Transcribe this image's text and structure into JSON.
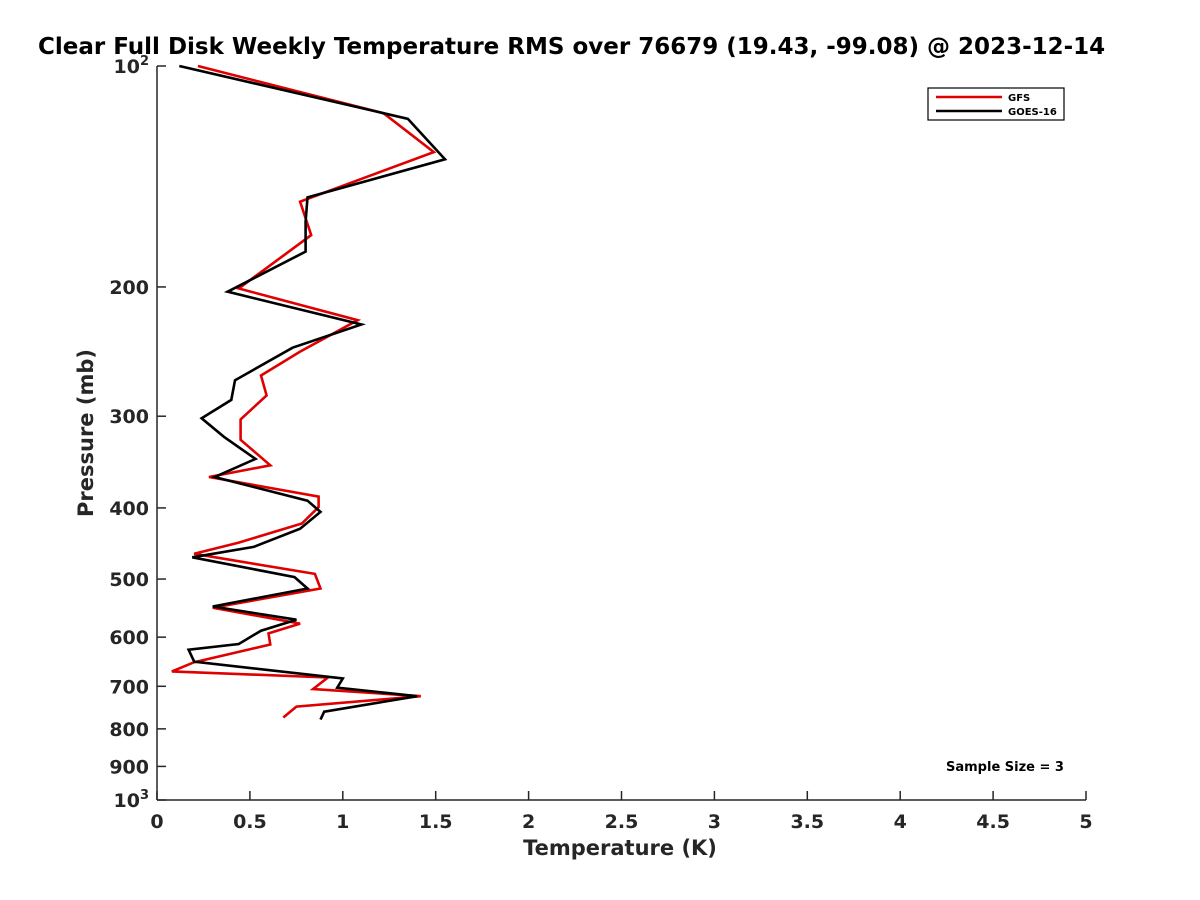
{
  "chart_data": {
    "type": "line",
    "title": "Clear Full Disk Weekly Temperature RMS over 76679 (19.43, -99.08) @ 2023-12-14",
    "xlabel": "Temperature (K)",
    "ylabel": "Pressure (mb)",
    "xlim": [
      0,
      5
    ],
    "ylim": [
      100,
      1000
    ],
    "y_scale": "log",
    "y_reversed": true,
    "x_ticks": [
      "0",
      "0.5",
      "1",
      "1.5",
      "2",
      "2.5",
      "3",
      "3.5",
      "4",
      "4.5",
      "5"
    ],
    "y_ticks": [
      {
        "value": 100,
        "base": "10",
        "exp": "2"
      },
      {
        "value": 200,
        "label": "200"
      },
      {
        "value": 300,
        "label": "300"
      },
      {
        "value": 400,
        "label": "400"
      },
      {
        "value": 500,
        "label": "500"
      },
      {
        "value": 600,
        "label": "600"
      },
      {
        "value": 700,
        "label": "700"
      },
      {
        "value": 800,
        "label": "800"
      },
      {
        "value": 900,
        "label": "900"
      },
      {
        "value": 1000,
        "base": "10",
        "exp": "3"
      }
    ],
    "grid": false,
    "legend_position": "top-right",
    "annotation": "Sample Size = 3",
    "series": [
      {
        "name": "GFS",
        "color": "#e00000",
        "points": [
          [
            0.22,
            100
          ],
          [
            1.22,
            116
          ],
          [
            1.49,
            131
          ],
          [
            0.77,
            153
          ],
          [
            0.83,
            170
          ],
          [
            0.44,
            201
          ],
          [
            1.08,
            222
          ],
          [
            0.77,
            245
          ],
          [
            0.56,
            264
          ],
          [
            0.59,
            281
          ],
          [
            0.45,
            303
          ],
          [
            0.45,
            323
          ],
          [
            0.61,
            350
          ],
          [
            0.28,
            363
          ],
          [
            0.87,
            386
          ],
          [
            0.87,
            399
          ],
          [
            0.78,
            420
          ],
          [
            0.44,
            446
          ],
          [
            0.2,
            462
          ],
          [
            0.85,
            492
          ],
          [
            0.88,
            515
          ],
          [
            0.3,
            547
          ],
          [
            0.77,
            575
          ],
          [
            0.6,
            593
          ],
          [
            0.61,
            614
          ],
          [
            0.2,
            649
          ],
          [
            0.08,
            668
          ],
          [
            0.92,
            681
          ],
          [
            0.84,
            706
          ],
          [
            1.42,
            722
          ],
          [
            0.75,
            746
          ],
          [
            0.68,
            772
          ]
        ]
      },
      {
        "name": "GOES-16",
        "color": "#000000",
        "points": [
          [
            0.12,
            100
          ],
          [
            1.35,
            118
          ],
          [
            1.55,
            134
          ],
          [
            0.81,
            151
          ],
          [
            0.8,
            163
          ],
          [
            0.8,
            179
          ],
          [
            0.38,
            203
          ],
          [
            1.1,
            225
          ],
          [
            0.73,
            242
          ],
          [
            0.42,
            268
          ],
          [
            0.4,
            285
          ],
          [
            0.24,
            302
          ],
          [
            0.36,
            320
          ],
          [
            0.53,
            343
          ],
          [
            0.31,
            363
          ],
          [
            0.81,
            391
          ],
          [
            0.88,
            405
          ],
          [
            0.77,
            427
          ],
          [
            0.52,
            452
          ],
          [
            0.19,
            467
          ],
          [
            0.74,
            497
          ],
          [
            0.81,
            515
          ],
          [
            0.3,
            545
          ],
          [
            0.75,
            568
          ],
          [
            0.56,
            588
          ],
          [
            0.44,
            613
          ],
          [
            0.17,
            624
          ],
          [
            0.2,
            648
          ],
          [
            1.0,
            683
          ],
          [
            0.97,
            703
          ],
          [
            1.4,
            722
          ],
          [
            0.9,
            758
          ],
          [
            0.88,
            777
          ]
        ]
      }
    ]
  }
}
